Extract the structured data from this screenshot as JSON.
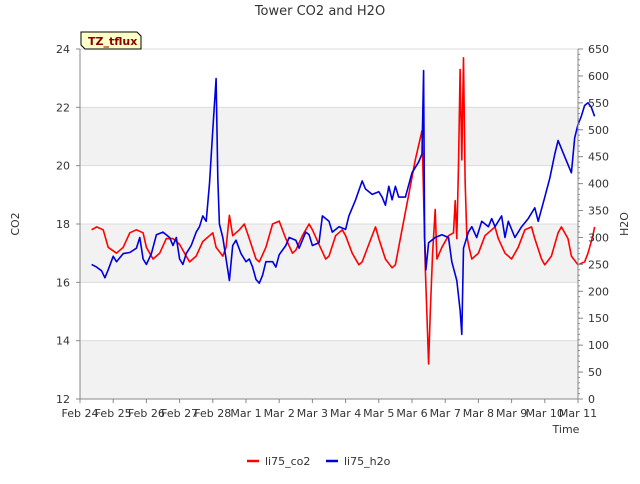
{
  "chart_data": {
    "type": "line",
    "title": "Tower CO2 and H2O",
    "badge": "TZ_tflux",
    "xlabel": "Time",
    "ylabel_left": "CO2",
    "ylabel_right": "H2O",
    "x_ticks": [
      "Feb 24",
      "Feb 25",
      "Feb 26",
      "Feb 27",
      "Feb 28",
      "Mar 1",
      "Mar 2",
      "Mar 3",
      "Mar 4",
      "Mar 5",
      "Mar 6",
      "Mar 7",
      "Mar 8",
      "Mar 9",
      "Mar 10",
      "Mar 11"
    ],
    "x_range_days": [
      0,
      15
    ],
    "y_left": {
      "range": [
        12,
        24
      ],
      "ticks": [
        12,
        14,
        16,
        18,
        20,
        22,
        24
      ]
    },
    "y_right": {
      "range": [
        0,
        650
      ],
      "ticks": [
        0,
        50,
        100,
        150,
        200,
        250,
        300,
        350,
        400,
        450,
        500,
        550,
        600,
        650
      ]
    },
    "grid": true,
    "legend_position": "bottom-center",
    "series": [
      {
        "name": "li75_co2",
        "axis": "left",
        "color": "#ff0000",
        "points": [
          [
            0.35,
            17.8
          ],
          [
            0.5,
            17.9
          ],
          [
            0.7,
            17.8
          ],
          [
            0.85,
            17.2
          ],
          [
            1.1,
            17.0
          ],
          [
            1.3,
            17.2
          ],
          [
            1.5,
            17.7
          ],
          [
            1.7,
            17.8
          ],
          [
            1.9,
            17.7
          ],
          [
            2.0,
            17.2
          ],
          [
            2.2,
            16.8
          ],
          [
            2.4,
            17.0
          ],
          [
            2.6,
            17.5
          ],
          [
            2.8,
            17.5
          ],
          [
            3.0,
            17.3
          ],
          [
            3.2,
            16.9
          ],
          [
            3.3,
            16.7
          ],
          [
            3.5,
            16.9
          ],
          [
            3.7,
            17.4
          ],
          [
            3.9,
            17.6
          ],
          [
            4.0,
            17.7
          ],
          [
            4.1,
            17.2
          ],
          [
            4.3,
            16.9
          ],
          [
            4.4,
            17.2
          ],
          [
            4.5,
            18.3
          ],
          [
            4.6,
            17.6
          ],
          [
            4.8,
            17.8
          ],
          [
            4.95,
            18.0
          ],
          [
            5.1,
            17.5
          ],
          [
            5.3,
            16.8
          ],
          [
            5.4,
            16.7
          ],
          [
            5.6,
            17.2
          ],
          [
            5.8,
            18.0
          ],
          [
            6.0,
            18.1
          ],
          [
            6.2,
            17.5
          ],
          [
            6.4,
            17.0
          ],
          [
            6.5,
            17.1
          ],
          [
            6.7,
            17.6
          ],
          [
            6.9,
            18.0
          ],
          [
            7.0,
            17.8
          ],
          [
            7.2,
            17.3
          ],
          [
            7.4,
            16.8
          ],
          [
            7.5,
            16.9
          ],
          [
            7.7,
            17.6
          ],
          [
            7.9,
            17.8
          ],
          [
            8.0,
            17.6
          ],
          [
            8.2,
            17.0
          ],
          [
            8.4,
            16.6
          ],
          [
            8.5,
            16.7
          ],
          [
            8.7,
            17.3
          ],
          [
            8.9,
            17.9
          ],
          [
            9.0,
            17.5
          ],
          [
            9.2,
            16.8
          ],
          [
            9.4,
            16.5
          ],
          [
            9.5,
            16.6
          ],
          [
            9.7,
            17.8
          ],
          [
            9.9,
            19.0
          ],
          [
            10.1,
            20.2
          ],
          [
            10.3,
            21.2
          ],
          [
            10.4,
            16.5
          ],
          [
            10.5,
            13.2
          ],
          [
            10.55,
            15.0
          ],
          [
            10.62,
            17.0
          ],
          [
            10.7,
            18.5
          ],
          [
            10.75,
            16.8
          ],
          [
            10.9,
            17.2
          ],
          [
            11.1,
            17.6
          ],
          [
            11.25,
            17.7
          ],
          [
            11.3,
            18.8
          ],
          [
            11.35,
            17.5
          ],
          [
            11.4,
            20.0
          ],
          [
            11.45,
            23.3
          ],
          [
            11.5,
            20.2
          ],
          [
            11.55,
            23.7
          ],
          [
            11.6,
            19.5
          ],
          [
            11.65,
            17.6
          ],
          [
            11.7,
            17.3
          ],
          [
            11.8,
            16.8
          ],
          [
            12.0,
            17.0
          ],
          [
            12.2,
            17.6
          ],
          [
            12.4,
            17.8
          ],
          [
            12.5,
            17.9
          ],
          [
            12.6,
            17.5
          ],
          [
            12.8,
            17.0
          ],
          [
            13.0,
            16.8
          ],
          [
            13.2,
            17.2
          ],
          [
            13.4,
            17.8
          ],
          [
            13.6,
            17.9
          ],
          [
            13.7,
            17.5
          ],
          [
            13.9,
            16.8
          ],
          [
            14.0,
            16.6
          ],
          [
            14.2,
            16.9
          ],
          [
            14.4,
            17.7
          ],
          [
            14.5,
            17.9
          ],
          [
            14.7,
            17.5
          ],
          [
            14.8,
            16.9
          ],
          [
            15.0,
            16.6
          ],
          [
            15.2,
            16.7
          ],
          [
            15.3,
            17.0
          ],
          [
            15.45,
            17.6
          ],
          [
            15.5,
            17.9
          ]
        ]
      },
      {
        "name": "li75_h2o",
        "axis": "right",
        "color": "#0000dd",
        "points": [
          [
            0.35,
            250
          ],
          [
            0.5,
            245
          ],
          [
            0.65,
            238
          ],
          [
            0.75,
            225
          ],
          [
            0.85,
            240
          ],
          [
            1.0,
            265
          ],
          [
            1.1,
            255
          ],
          [
            1.3,
            270
          ],
          [
            1.5,
            272
          ],
          [
            1.7,
            280
          ],
          [
            1.8,
            300
          ],
          [
            1.9,
            260
          ],
          [
            2.0,
            250
          ],
          [
            2.15,
            270
          ],
          [
            2.3,
            305
          ],
          [
            2.5,
            310
          ],
          [
            2.7,
            300
          ],
          [
            2.8,
            285
          ],
          [
            2.9,
            300
          ],
          [
            3.0,
            260
          ],
          [
            3.1,
            250
          ],
          [
            3.2,
            270
          ],
          [
            3.35,
            285
          ],
          [
            3.5,
            310
          ],
          [
            3.6,
            320
          ],
          [
            3.7,
            340
          ],
          [
            3.8,
            330
          ],
          [
            3.9,
            400
          ],
          [
            4.0,
            500
          ],
          [
            4.1,
            595
          ],
          [
            4.15,
            410
          ],
          [
            4.2,
            325
          ],
          [
            4.3,
            300
          ],
          [
            4.4,
            260
          ],
          [
            4.5,
            220
          ],
          [
            4.6,
            285
          ],
          [
            4.7,
            295
          ],
          [
            4.85,
            270
          ],
          [
            5.0,
            255
          ],
          [
            5.1,
            260
          ],
          [
            5.2,
            245
          ],
          [
            5.3,
            222
          ],
          [
            5.4,
            215
          ],
          [
            5.5,
            230
          ],
          [
            5.6,
            255
          ],
          [
            5.8,
            255
          ],
          [
            5.9,
            245
          ],
          [
            6.0,
            268
          ],
          [
            6.2,
            285
          ],
          [
            6.3,
            300
          ],
          [
            6.5,
            295
          ],
          [
            6.6,
            280
          ],
          [
            6.8,
            310
          ],
          [
            6.9,
            305
          ],
          [
            7.0,
            285
          ],
          [
            7.2,
            290
          ],
          [
            7.3,
            340
          ],
          [
            7.5,
            330
          ],
          [
            7.6,
            310
          ],
          [
            7.8,
            320
          ],
          [
            8.0,
            315
          ],
          [
            8.1,
            340
          ],
          [
            8.3,
            370
          ],
          [
            8.5,
            405
          ],
          [
            8.6,
            390
          ],
          [
            8.8,
            380
          ],
          [
            9.0,
            385
          ],
          [
            9.1,
            375
          ],
          [
            9.2,
            360
          ],
          [
            9.3,
            395
          ],
          [
            9.4,
            370
          ],
          [
            9.5,
            395
          ],
          [
            9.6,
            375
          ],
          [
            9.8,
            375
          ],
          [
            10.0,
            420
          ],
          [
            10.2,
            440
          ],
          [
            10.3,
            455
          ],
          [
            10.35,
            610
          ],
          [
            10.38,
            300
          ],
          [
            10.42,
            240
          ],
          [
            10.5,
            290
          ],
          [
            10.7,
            300
          ],
          [
            10.9,
            305
          ],
          [
            11.1,
            300
          ],
          [
            11.2,
            255
          ],
          [
            11.35,
            220
          ],
          [
            11.45,
            165
          ],
          [
            11.5,
            120
          ],
          [
            11.55,
            280
          ],
          [
            11.7,
            310
          ],
          [
            11.8,
            320
          ],
          [
            11.95,
            300
          ],
          [
            12.1,
            330
          ],
          [
            12.3,
            320
          ],
          [
            12.4,
            335
          ],
          [
            12.5,
            320
          ],
          [
            12.7,
            340
          ],
          [
            12.8,
            300
          ],
          [
            12.9,
            330
          ],
          [
            13.1,
            300
          ],
          [
            13.3,
            320
          ],
          [
            13.5,
            335
          ],
          [
            13.7,
            355
          ],
          [
            13.8,
            330
          ],
          [
            14.0,
            375
          ],
          [
            14.15,
            410
          ],
          [
            14.3,
            455
          ],
          [
            14.4,
            480
          ],
          [
            14.5,
            465
          ],
          [
            14.6,
            450
          ],
          [
            14.8,
            420
          ],
          [
            14.9,
            485
          ],
          [
            15.0,
            510
          ],
          [
            15.1,
            525
          ],
          [
            15.2,
            545
          ],
          [
            15.3,
            550
          ],
          [
            15.4,
            542
          ],
          [
            15.5,
            525
          ]
        ]
      }
    ]
  }
}
